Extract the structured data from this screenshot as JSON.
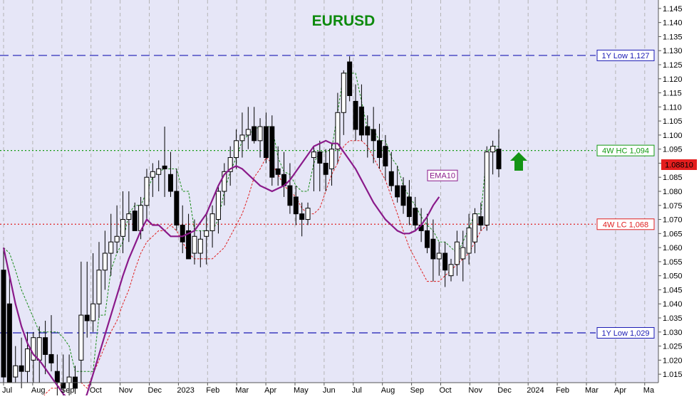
{
  "chart_data": {
    "type": "candlestick",
    "title": "EURUSD",
    "ylim": [
      1.012,
      1.148
    ],
    "y_ticks": [
      "1.015",
      "1.020",
      "1.025",
      "1.030",
      "1.035",
      "1.040",
      "1.045",
      "1.050",
      "1.055",
      "1.060",
      "1.065",
      "1.070",
      "1.075",
      "1.080",
      "1.085",
      "1.090",
      "1.095",
      "1.100",
      "1.105",
      "1.110",
      "1.115",
      "1.120",
      "1.125",
      "1.130",
      "1.135",
      "1.140",
      "1.145"
    ],
    "x_ticks": [
      "Jul",
      "Aug",
      "Sep",
      "Oct",
      "Nov",
      "Dec",
      "2023",
      "Feb",
      "Mar",
      "Apr",
      "May",
      "Jun",
      "Jul",
      "Aug",
      "Sep",
      "Oct",
      "Nov",
      "Dec",
      "2024",
      "Feb",
      "Mar",
      "Apr",
      "Ma"
    ],
    "current_price_label": "1.08810",
    "annotation_ema": "EMA10",
    "levels": [
      {
        "label": "1Y Low 1,127",
        "value": 1.1283,
        "color": "#1a1ab4",
        "style": "dashed"
      },
      {
        "label": "4W HC 1,094",
        "value": 1.0945,
        "color": "#129a12",
        "style": "dotted"
      },
      {
        "label": "4W LC 1,068",
        "value": 1.0683,
        "color": "#e02020",
        "style": "dotted"
      },
      {
        "label": "1Y Low 1,029",
        "value": 1.0297,
        "color": "#1a1ab4",
        "style": "dashed"
      }
    ],
    "candles": [
      {
        "o": 1.052,
        "h": 1.06,
        "l": 1.012,
        "c": 1.014
      },
      {
        "o": 1.04,
        "h": 1.05,
        "l": 1.012,
        "c": 1.012
      },
      {
        "o": 1.014,
        "h": 1.025,
        "l": 1.012,
        "c": 1.018
      },
      {
        "o": 1.018,
        "h": 1.028,
        "l": 1.01,
        "c": 1.016
      },
      {
        "o": 1.016,
        "h": 1.03,
        "l": 1.012,
        "c": 1.024
      },
      {
        "o": 1.02,
        "h": 1.03,
        "l": 1.012,
        "c": 1.028
      },
      {
        "o": 1.02,
        "h": 1.032,
        "l": 1.012,
        "c": 1.028
      },
      {
        "o": 1.028,
        "h": 1.034,
        "l": 1.015,
        "c": 1.022
      },
      {
        "o": 1.022,
        "h": 1.036,
        "l": 1.016,
        "c": 1.019
      },
      {
        "o": 1.016,
        "h": 1.022,
        "l": 1.005,
        "c": 1.012
      },
      {
        "o": 1.012,
        "h": 1.022,
        "l": 1.005,
        "c": 1.01
      },
      {
        "o": 1.012,
        "h": 1.022,
        "l": 1.005,
        "c": 1.014
      },
      {
        "o": 1.014,
        "h": 1.018,
        "l": 1.008,
        "c": 1.01
      },
      {
        "o": 1.02,
        "h": 1.055,
        "l": 1.012,
        "c": 1.036
      },
      {
        "o": 1.036,
        "h": 1.055,
        "l": 1.028,
        "c": 1.034
      },
      {
        "o": 1.034,
        "h": 1.058,
        "l": 1.03,
        "c": 1.04
      },
      {
        "o": 1.04,
        "h": 1.062,
        "l": 1.035,
        "c": 1.052
      },
      {
        "o": 1.052,
        "h": 1.066,
        "l": 1.045,
        "c": 1.058
      },
      {
        "o": 1.058,
        "h": 1.072,
        "l": 1.05,
        "c": 1.062
      },
      {
        "o": 1.062,
        "h": 1.075,
        "l": 1.058,
        "c": 1.064
      },
      {
        "o": 1.064,
        "h": 1.08,
        "l": 1.058,
        "c": 1.07
      },
      {
        "o": 1.07,
        "h": 1.08,
        "l": 1.062,
        "c": 1.072
      },
      {
        "o": 1.073,
        "h": 1.076,
        "l": 1.066,
        "c": 1.066
      },
      {
        "o": 1.066,
        "h": 1.078,
        "l": 1.063,
        "c": 1.075
      },
      {
        "o": 1.075,
        "h": 1.088,
        "l": 1.07,
        "c": 1.085
      },
      {
        "o": 1.085,
        "h": 1.09,
        "l": 1.078,
        "c": 1.087
      },
      {
        "o": 1.086,
        "h": 1.091,
        "l": 1.08,
        "c": 1.088
      },
      {
        "o": 1.089,
        "h": 1.103,
        "l": 1.078,
        "c": 1.088
      },
      {
        "o": 1.086,
        "h": 1.094,
        "l": 1.078,
        "c": 1.08
      },
      {
        "o": 1.08,
        "h": 1.088,
        "l": 1.066,
        "c": 1.068
      },
      {
        "o": 1.068,
        "h": 1.075,
        "l": 1.058,
        "c": 1.062
      },
      {
        "o": 1.066,
        "h": 1.072,
        "l": 1.056,
        "c": 1.056
      },
      {
        "o": 1.058,
        "h": 1.07,
        "l": 1.054,
        "c": 1.064
      },
      {
        "o": 1.058,
        "h": 1.066,
        "l": 1.053,
        "c": 1.063
      },
      {
        "o": 1.064,
        "h": 1.072,
        "l": 1.054,
        "c": 1.066
      },
      {
        "o": 1.066,
        "h": 1.075,
        "l": 1.06,
        "c": 1.072
      },
      {
        "o": 1.07,
        "h": 1.082,
        "l": 1.065,
        "c": 1.08
      },
      {
        "o": 1.08,
        "h": 1.09,
        "l": 1.075,
        "c": 1.087
      },
      {
        "o": 1.087,
        "h": 1.096,
        "l": 1.082,
        "c": 1.092
      },
      {
        "o": 1.092,
        "h": 1.102,
        "l": 1.088,
        "c": 1.098
      },
      {
        "o": 1.098,
        "h": 1.108,
        "l": 1.092,
        "c": 1.1
      },
      {
        "o": 1.1,
        "h": 1.11,
        "l": 1.095,
        "c": 1.102
      },
      {
        "o": 1.103,
        "h": 1.11,
        "l": 1.097,
        "c": 1.098
      },
      {
        "o": 1.098,
        "h": 1.106,
        "l": 1.092,
        "c": 1.103
      },
      {
        "o": 1.103,
        "h": 1.108,
        "l": 1.09,
        "c": 1.092
      },
      {
        "o": 1.103,
        "h": 1.107,
        "l": 1.082,
        "c": 1.085
      },
      {
        "o": 1.088,
        "h": 1.096,
        "l": 1.082,
        "c": 1.086
      },
      {
        "o": 1.086,
        "h": 1.094,
        "l": 1.078,
        "c": 1.082
      },
      {
        "o": 1.082,
        "h": 1.09,
        "l": 1.072,
        "c": 1.075
      },
      {
        "o": 1.078,
        "h": 1.082,
        "l": 1.068,
        "c": 1.072
      },
      {
        "o": 1.072,
        "h": 1.076,
        "l": 1.064,
        "c": 1.07
      },
      {
        "o": 1.07,
        "h": 1.076,
        "l": 1.068,
        "c": 1.074
      },
      {
        "o": 1.092,
        "h": 1.096,
        "l": 1.08,
        "c": 1.094
      },
      {
        "o": 1.094,
        "h": 1.098,
        "l": 1.08,
        "c": 1.09
      },
      {
        "o": 1.09,
        "h": 1.095,
        "l": 1.08,
        "c": 1.086
      },
      {
        "o": 1.088,
        "h": 1.097,
        "l": 1.082,
        "c": 1.095
      },
      {
        "o": 1.095,
        "h": 1.115,
        "l": 1.09,
        "c": 1.108
      },
      {
        "o": 1.108,
        "h": 1.123,
        "l": 1.1,
        "c": 1.122
      },
      {
        "o": 1.126,
        "h": 1.128,
        "l": 1.112,
        "c": 1.114
      },
      {
        "o": 1.112,
        "h": 1.118,
        "l": 1.098,
        "c": 1.102
      },
      {
        "o": 1.11,
        "h": 1.118,
        "l": 1.098,
        "c": 1.1
      },
      {
        "o": 1.103,
        "h": 1.107,
        "l": 1.092,
        "c": 1.1
      },
      {
        "o": 1.102,
        "h": 1.11,
        "l": 1.09,
        "c": 1.098
      },
      {
        "o": 1.098,
        "h": 1.104,
        "l": 1.088,
        "c": 1.092
      },
      {
        "o": 1.096,
        "h": 1.1,
        "l": 1.084,
        "c": 1.089
      },
      {
        "o": 1.087,
        "h": 1.094,
        "l": 1.08,
        "c": 1.082
      },
      {
        "o": 1.082,
        "h": 1.089,
        "l": 1.076,
        "c": 1.078
      },
      {
        "o": 1.082,
        "h": 1.085,
        "l": 1.072,
        "c": 1.075
      },
      {
        "o": 1.078,
        "h": 1.084,
        "l": 1.068,
        "c": 1.071
      },
      {
        "o": 1.074,
        "h": 1.078,
        "l": 1.066,
        "c": 1.068
      },
      {
        "o": 1.068,
        "h": 1.074,
        "l": 1.062,
        "c": 1.066
      },
      {
        "o": 1.066,
        "h": 1.072,
        "l": 1.058,
        "c": 1.06
      },
      {
        "o": 1.063,
        "h": 1.07,
        "l": 1.048,
        "c": 1.056
      },
      {
        "o": 1.056,
        "h": 1.062,
        "l": 1.05,
        "c": 1.058
      },
      {
        "o": 1.058,
        "h": 1.062,
        "l": 1.046,
        "c": 1.052
      },
      {
        "o": 1.05,
        "h": 1.056,
        "l": 1.048,
        "c": 1.054
      },
      {
        "o": 1.054,
        "h": 1.066,
        "l": 1.05,
        "c": 1.062
      },
      {
        "o": 1.056,
        "h": 1.066,
        "l": 1.048,
        "c": 1.06
      },
      {
        "o": 1.058,
        "h": 1.072,
        "l": 1.054,
        "c": 1.067
      },
      {
        "o": 1.062,
        "h": 1.074,
        "l": 1.058,
        "c": 1.072
      },
      {
        "o": 1.071,
        "h": 1.076,
        "l": 1.066,
        "c": 1.068
      },
      {
        "o": 1.068,
        "h": 1.096,
        "l": 1.066,
        "c": 1.094
      },
      {
        "o": 1.094,
        "h": 1.098,
        "l": 1.086,
        "c": 1.096
      },
      {
        "o": 1.095,
        "h": 1.102,
        "l": 1.085,
        "c": 1.088
      }
    ],
    "ema10": [
      1.06,
      1.05,
      1.04,
      1.032,
      1.026,
      1.022,
      1.02,
      1.017,
      1.014,
      1.011,
      1.008,
      1.006,
      1.003,
      1.003,
      1.008,
      1.015,
      1.022,
      1.029,
      1.036,
      1.043,
      1.05,
      1.056,
      1.061,
      1.066,
      1.07,
      1.068,
      1.068,
      1.066,
      1.064,
      1.064,
      1.064,
      1.065,
      1.066,
      1.069,
      1.072,
      1.077,
      1.082,
      1.086,
      1.088,
      1.089,
      1.088,
      1.086,
      1.084,
      1.082,
      1.081,
      1.08,
      1.081,
      1.082,
      1.084,
      1.087,
      1.09,
      1.093,
      1.096,
      1.097,
      1.098,
      1.097,
      1.097,
      1.094,
      1.091,
      1.088,
      1.084,
      1.08,
      1.076,
      1.073,
      1.07,
      1.068,
      1.066,
      1.065,
      1.065,
      1.066,
      1.068,
      1.071,
      1.075,
      1.078
    ],
    "upper_band": [
      1.06,
      1.058,
      1.052,
      1.045,
      1.04,
      1.035,
      1.03,
      1.03,
      1.03,
      1.03,
      1.028,
      1.025,
      1.016,
      1.016,
      1.016,
      1.016,
      1.036,
      1.036,
      1.052,
      1.058,
      1.062,
      1.072,
      1.075,
      1.075,
      1.08,
      1.085,
      1.087,
      1.088,
      1.088,
      1.088,
      1.08,
      1.08,
      1.066,
      1.066,
      1.066,
      1.066,
      1.07,
      1.08,
      1.087,
      1.092,
      1.098,
      1.1,
      1.102,
      1.103,
      1.103,
      1.103,
      1.092,
      1.087,
      1.086,
      1.082,
      1.08,
      1.08,
      1.09,
      1.094,
      1.094,
      1.095,
      1.108,
      1.122,
      1.122,
      1.122,
      1.112,
      1.102,
      1.102,
      1.098,
      1.098,
      1.092,
      1.089,
      1.082,
      1.078,
      1.075,
      1.071,
      1.068,
      1.066,
      1.062,
      1.062,
      1.06,
      1.058,
      1.062,
      1.067,
      1.072,
      1.072,
      1.094,
      1.096,
      1.096
    ],
    "lower_band": [
      1.0,
      1.0,
      1.0,
      1.002,
      1.005,
      1.005,
      1.005,
      1.008,
      1.01,
      1.01,
      1.012,
      1.012,
      1.012,
      1.012,
      1.01,
      1.015,
      1.02,
      1.025,
      1.03,
      1.034,
      1.04,
      1.045,
      1.052,
      1.058,
      1.062,
      1.064,
      1.066,
      1.066,
      1.068,
      1.066,
      1.062,
      1.058,
      1.056,
      1.056,
      1.056,
      1.056,
      1.058,
      1.06,
      1.064,
      1.068,
      1.072,
      1.078,
      1.085,
      1.088,
      1.092,
      1.09,
      1.086,
      1.082,
      1.08,
      1.078,
      1.074,
      1.072,
      1.072,
      1.074,
      1.08,
      1.086,
      1.09,
      1.096,
      1.098,
      1.098,
      1.098,
      1.096,
      1.092,
      1.088,
      1.084,
      1.078,
      1.072,
      1.066,
      1.06,
      1.056,
      1.052,
      1.048,
      1.048,
      1.048,
      1.05,
      1.052,
      1.054,
      1.056,
      1.058,
      1.062,
      1.066,
      1.068
    ]
  }
}
